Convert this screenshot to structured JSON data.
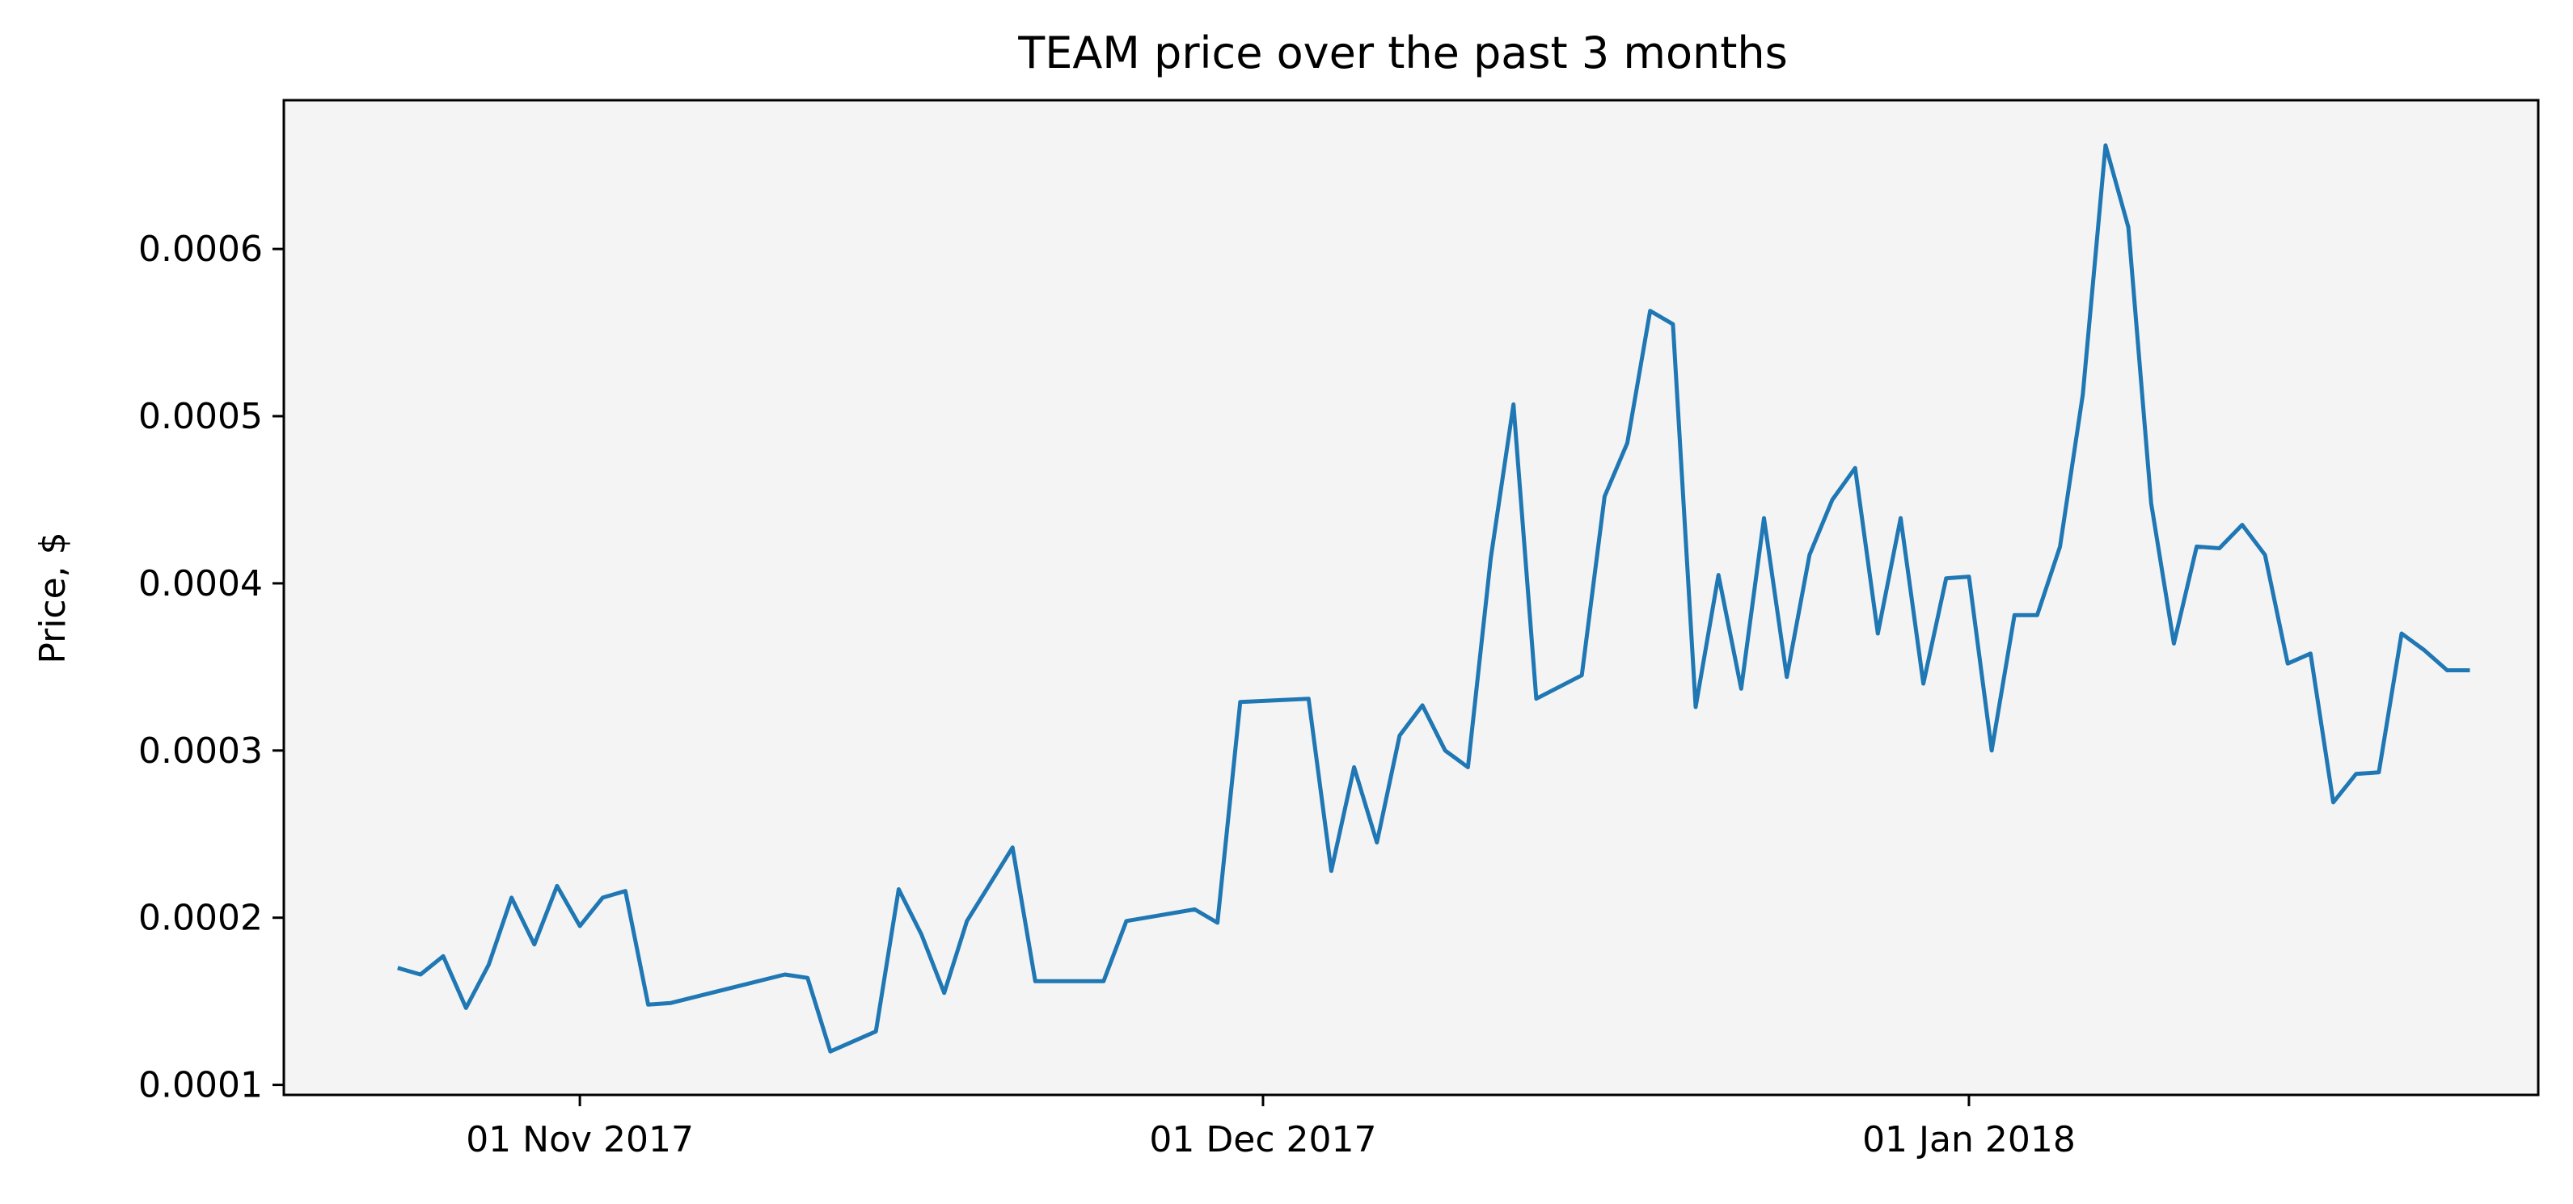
{
  "chart_data": {
    "type": "line",
    "title": "TEAM price over the past 3 months",
    "xlabel": "",
    "ylabel": "Price, $",
    "x_tick_labels": [
      "01 Nov 2017",
      "01 Dec 2017",
      "01 Jan 2018"
    ],
    "x_tick_dates": [
      "2017-11-01",
      "2017-12-01",
      "2018-01-01"
    ],
    "y_ticks": [
      0.0001,
      0.0002,
      0.0003,
      0.0004,
      0.0005,
      0.0006
    ],
    "y_tick_labels": [
      "0.0001",
      "0.0002",
      "0.0003",
      "0.0004",
      "0.0005",
      "0.0006"
    ],
    "xlim": [
      "2017-10-19",
      "2018-01-26"
    ],
    "ylim": [
      9.4e-05,
      0.000689
    ],
    "grid": false,
    "plot_background": "#f4f4f4",
    "series": [
      {
        "color": "#1f77b4",
        "x": [
          "2017-10-24",
          "2017-10-25",
          "2017-10-26",
          "2017-10-27",
          "2017-10-28",
          "2017-10-29",
          "2017-10-30",
          "2017-10-31",
          "2017-11-01",
          "2017-11-02",
          "2017-11-03",
          "2017-11-04",
          "2017-11-05",
          "2017-11-10",
          "2017-11-11",
          "2017-11-12",
          "2017-11-14",
          "2017-11-15",
          "2017-11-16",
          "2017-11-17",
          "2017-11-18",
          "2017-11-20",
          "2017-11-21",
          "2017-11-24",
          "2017-11-25",
          "2017-11-28",
          "2017-11-29",
          "2017-11-30",
          "2017-12-03",
          "2017-12-04",
          "2017-12-05",
          "2017-12-06",
          "2017-12-07",
          "2017-12-08",
          "2017-12-09",
          "2017-12-10",
          "2017-12-11",
          "2017-12-12",
          "2017-12-13",
          "2017-12-15",
          "2017-12-16",
          "2017-12-17",
          "2017-12-18",
          "2017-12-19",
          "2017-12-20",
          "2017-12-21",
          "2017-12-22",
          "2017-12-23",
          "2017-12-24",
          "2017-12-25",
          "2017-12-26",
          "2017-12-27",
          "2017-12-28",
          "2017-12-29",
          "2017-12-30",
          "2017-12-31",
          "2018-01-01",
          "2018-01-02",
          "2018-01-03",
          "2018-01-04",
          "2018-01-05",
          "2018-01-06",
          "2018-01-07",
          "2018-01-08",
          "2018-01-09",
          "2018-01-10",
          "2018-01-11",
          "2018-01-12",
          "2018-01-13",
          "2018-01-14",
          "2018-01-15",
          "2018-01-16",
          "2018-01-17",
          "2018-01-18",
          "2018-01-19",
          "2018-01-20",
          "2018-01-21",
          "2018-01-22",
          "2018-01-23"
        ],
        "values": [
          0.00017,
          0.000166,
          0.000177,
          0.000146,
          0.000172,
          0.000212,
          0.000184,
          0.000219,
          0.000195,
          0.000212,
          0.000216,
          0.000148,
          0.000149,
          0.000166,
          0.000164,
          0.00012,
          0.000132,
          0.000217,
          0.00019,
          0.000155,
          0.000198,
          0.000242,
          0.000162,
          0.000162,
          0.000198,
          0.000205,
          0.000197,
          0.000329,
          0.000331,
          0.000228,
          0.00029,
          0.000245,
          0.000309,
          0.000327,
          0.0003,
          0.00029,
          0.000415,
          0.000507,
          0.000331,
          0.000345,
          0.000452,
          0.000484,
          0.000563,
          0.000555,
          0.000326,
          0.000405,
          0.000337,
          0.000439,
          0.000344,
          0.000417,
          0.00045,
          0.000469,
          0.00037,
          0.000439,
          0.00034,
          0.000403,
          0.000404,
          0.0003,
          0.000381,
          0.000381,
          0.000422,
          0.000513,
          0.000662,
          0.000613,
          0.000448,
          0.000364,
          0.000422,
          0.000421,
          0.000435,
          0.000417,
          0.000352,
          0.000358,
          0.000269,
          0.000286,
          0.000287,
          0.00037,
          0.00036,
          0.000348,
          0.000348
        ]
      }
    ]
  }
}
